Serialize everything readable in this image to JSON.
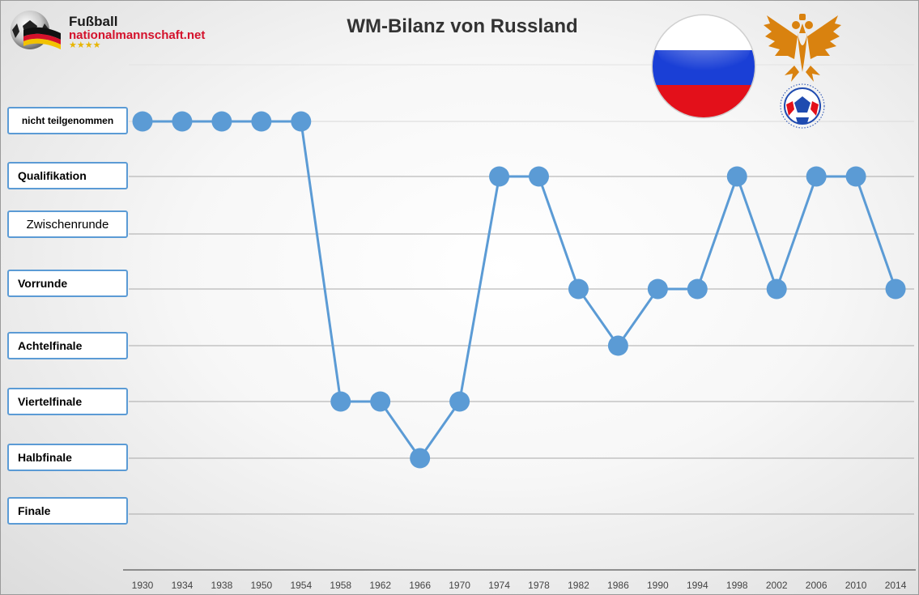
{
  "logo": {
    "line1": "Fußball",
    "line2": "nationalmannschaft.net",
    "stars": "★★★★"
  },
  "chart_data": {
    "type": "line",
    "title": "WM-Bilanz von Russland",
    "xlabel": "",
    "ylabel": "",
    "y_categories": [
      "nicht teilgenommen",
      "Qualifikation",
      "Zwischenrunde",
      "Vorrunde",
      "Achtelfinale",
      "Viertelfinale",
      "Halbfinale",
      "Finale"
    ],
    "x": [
      "1930",
      "1934",
      "1938",
      "1950",
      "1954",
      "1958",
      "1962",
      "1966",
      "1970",
      "1974",
      "1978",
      "1982",
      "1986",
      "1990",
      "1994",
      "1998",
      "2002",
      "2006",
      "2010",
      "2014"
    ],
    "values": [
      "nicht teilgenommen",
      "nicht teilgenommen",
      "nicht teilgenommen",
      "nicht teilgenommen",
      "nicht teilgenommen",
      "Viertelfinale",
      "Viertelfinale",
      "Halbfinale",
      "Viertelfinale",
      "Qualifikation",
      "Qualifikation",
      "Vorrunde",
      "Achtelfinale",
      "Vorrunde",
      "Vorrunde",
      "Qualifikation",
      "Vorrunde",
      "Qualifikation",
      "Qualifikation",
      "Vorrunde"
    ],
    "line_color": "#5b9bd5",
    "grid": true,
    "legend": "none"
  },
  "colors": {
    "accent": "#5b9bd5",
    "flag_white": "#ffffff",
    "flag_blue": "#1a3fd6",
    "flag_red": "#e3101a",
    "emblem_gold": "#d9820f"
  }
}
